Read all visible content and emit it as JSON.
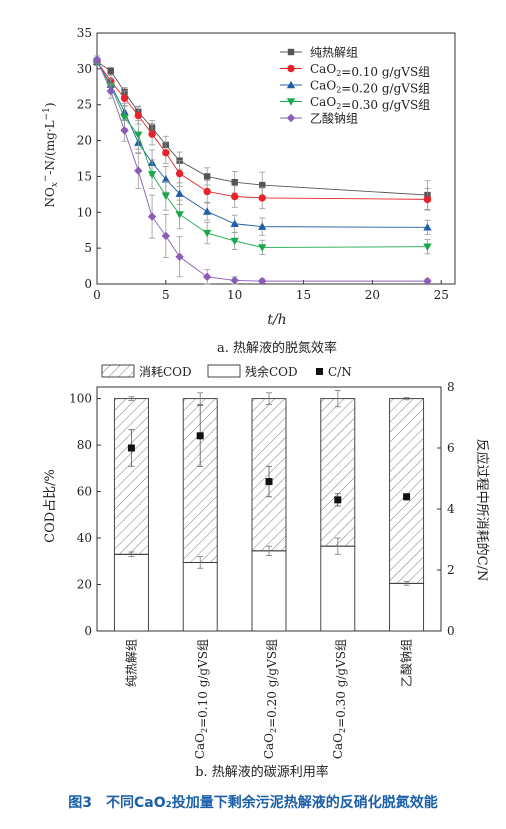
{
  "figure_caption": "图3　不同CaO₂投加量下剩余污泥热解液的反硝化脱氮效能",
  "chart_data": [
    {
      "type": "line",
      "subcaption": "a. 热解液的脱氮效率",
      "xlabel": "t/h",
      "ylabel": "NOx⁻-N/(mg·L⁻¹)",
      "xlim": [
        0,
        26
      ],
      "ylim": [
        0,
        35
      ],
      "xticks": [
        0,
        5,
        10,
        15,
        20,
        25
      ],
      "yticks": [
        0,
        5,
        10,
        15,
        20,
        25,
        30,
        35
      ],
      "legend_position": "top-right",
      "series": [
        {
          "name": "纯热解组",
          "marker": "square",
          "color": "#555555",
          "x": [
            0,
            1,
            2,
            3,
            4,
            5,
            6,
            8,
            10,
            12,
            24
          ],
          "y": [
            31.0,
            29.7,
            26.8,
            24.0,
            21.8,
            19.4,
            17.2,
            15.0,
            14.2,
            13.8,
            12.4
          ],
          "err": [
            0.5,
            0.5,
            0.6,
            0.8,
            1.0,
            1.2,
            1.2,
            1.2,
            1.5,
            1.8,
            2.0
          ]
        },
        {
          "name": "CaO₂=0.10 g/gVS组",
          "marker": "circle",
          "color": "#e8232b",
          "x": [
            0,
            1,
            2,
            3,
            4,
            5,
            6,
            8,
            10,
            12,
            24
          ],
          "y": [
            31.0,
            28.3,
            25.9,
            23.5,
            20.9,
            18.3,
            15.4,
            12.9,
            12.2,
            12.0,
            11.8
          ],
          "err": [
            0.5,
            0.8,
            1.0,
            1.2,
            1.5,
            1.5,
            1.8,
            1.5,
            1.5,
            1.5,
            1.5
          ]
        },
        {
          "name": "CaO₂=0.20 g/gVS组",
          "marker": "triangle-up",
          "color": "#1f5fa6",
          "x": [
            0,
            1,
            2,
            3,
            4,
            5,
            6,
            8,
            10,
            12,
            24
          ],
          "y": [
            31.0,
            27.8,
            24.0,
            19.7,
            16.9,
            14.6,
            12.6,
            10.1,
            8.4,
            8.0,
            7.9
          ],
          "err": [
            0.5,
            0.8,
            1.2,
            1.5,
            1.8,
            1.8,
            1.5,
            1.2,
            1.2,
            1.2,
            1.0
          ]
        },
        {
          "name": "CaO₂=0.30 g/gVS组",
          "marker": "triangle-down",
          "color": "#1aa84c",
          "x": [
            0,
            1,
            2,
            3,
            4,
            5,
            6,
            8,
            10,
            12,
            24
          ],
          "y": [
            31.0,
            27.6,
            23.2,
            20.8,
            15.3,
            12.3,
            9.7,
            7.1,
            6.0,
            5.1,
            5.2
          ],
          "err": [
            0.5,
            1.0,
            1.5,
            2.0,
            2.0,
            2.0,
            2.0,
            1.5,
            1.2,
            1.0,
            1.0
          ]
        },
        {
          "name": "乙酸钠组",
          "marker": "diamond",
          "color": "#8a5cb8",
          "x": [
            0,
            1,
            2,
            3,
            4,
            5,
            6,
            8,
            10,
            12,
            24
          ],
          "y": [
            31.3,
            26.9,
            21.4,
            15.8,
            9.4,
            6.7,
            3.8,
            1.0,
            0.5,
            0.4,
            0.4
          ],
          "err": [
            0.5,
            1.0,
            1.5,
            2.5,
            3.0,
            3.0,
            2.8,
            1.0,
            0.5,
            0.3,
            0.3
          ]
        }
      ]
    },
    {
      "type": "bar",
      "subcaption": "b. 热解液的碳源利用率",
      "ylabel": "COD占比/%",
      "y2label": "反应过程中所消耗的C/N",
      "ylim": [
        0,
        105
      ],
      "y2lim": [
        0,
        8
      ],
      "yticks": [
        0,
        20,
        40,
        60,
        80,
        100
      ],
      "y2ticks": [
        0,
        2,
        4,
        6,
        8
      ],
      "legend_position": "top",
      "legend": {
        "consumed": "消耗COD",
        "residual": "残余COD",
        "cn": "C/N"
      },
      "categories": [
        "纯热解组",
        "CaO₂=0.10 g/gVS组",
        "CaO₂=0.20 g/gVS组",
        "CaO₂=0.30 g/gVS组",
        "乙酸钠组"
      ],
      "series": [
        {
          "name": "残余COD",
          "values": [
            33,
            29.5,
            34.5,
            36.5,
            20.5
          ],
          "err": [
            1,
            2.5,
            2,
            3.5,
            0.8
          ]
        },
        {
          "name": "消耗COD",
          "values": [
            67,
            70.5,
            65.5,
            63.5,
            79.5
          ],
          "top_err": [
            0.8,
            2.5,
            2.5,
            3.5,
            0.5
          ]
        },
        {
          "name": "C/N",
          "axis": "right",
          "values": [
            6.0,
            6.4,
            4.9,
            4.3,
            4.4
          ],
          "err": [
            0.6,
            1.0,
            0.5,
            0.2,
            0.1
          ]
        }
      ]
    }
  ]
}
